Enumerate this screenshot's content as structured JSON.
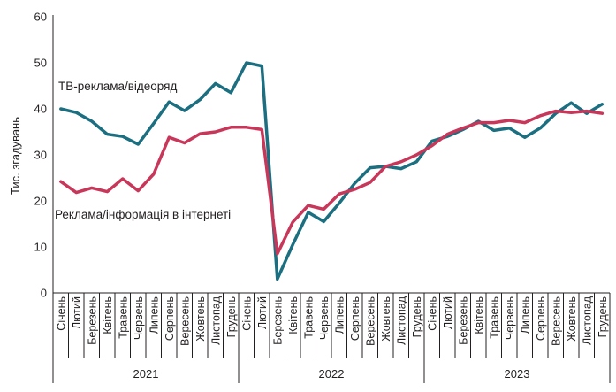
{
  "chart_data": {
    "type": "line",
    "ylabel": "Тис. згадувань",
    "ylim": [
      0,
      60
    ],
    "yticks": [
      0,
      10,
      20,
      30,
      40,
      50,
      60
    ],
    "months": [
      "Січень",
      "Лютий",
      "Березень",
      "Квітень",
      "Травень",
      "Червень",
      "Липень",
      "Серпень",
      "Вересень",
      "Жовтень",
      "Листопад",
      "Грудень"
    ],
    "years": [
      "2021",
      "2022",
      "2023"
    ],
    "grid": false,
    "series": [
      {
        "name": "ТВ-реклама/відеоряд",
        "color": "#1b6f80",
        "values": [
          40,
          39.2,
          37.3,
          34.5,
          34,
          32.3,
          36.8,
          41.5,
          39.6,
          42,
          45.5,
          43.5,
          50,
          49.3,
          3,
          10.5,
          17.5,
          15.5,
          19.5,
          23.8,
          27.2,
          27.5,
          27,
          28.5,
          33,
          34,
          35.5,
          37.3,
          35.3,
          35.8,
          33.8,
          35.8,
          39,
          41.3,
          39,
          41
        ]
      },
      {
        "name": "Реклама/інформація в інтернеті",
        "color": "#c8375a",
        "values": [
          24.2,
          21.8,
          22.8,
          22,
          24.8,
          22.2,
          25.8,
          33.8,
          32.6,
          34.6,
          35,
          36,
          36,
          35.5,
          8.5,
          15.4,
          19,
          18.2,
          21.5,
          22.5,
          24,
          27.5,
          28.5,
          30,
          32,
          34.5,
          35.8,
          37,
          37,
          37.5,
          37,
          38.5,
          39.5,
          39.2,
          39.5,
          39
        ]
      }
    ]
  }
}
